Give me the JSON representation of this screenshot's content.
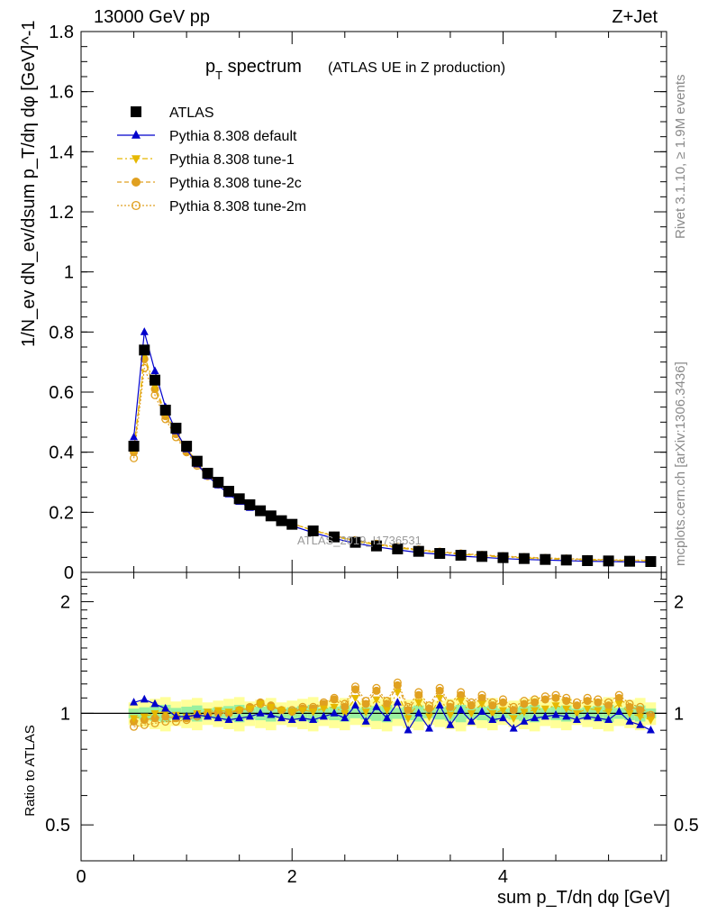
{
  "header": {
    "left": "13000 GeV pp",
    "right": "Z+Jet"
  },
  "side": {
    "rivet": "Rivet 3.1.10, ≥ 1.9M events",
    "mcplots": "mcplots.cern.ch [arXiv:1306.3436]"
  },
  "title": {
    "main": "p",
    "sub": "T",
    "rest": " spectrum",
    "paren": "(ATLAS UE in Z production)"
  },
  "watermark": "ATLAS_2019_I1736531",
  "axes": {
    "ylabel": "1/N_ev dN_ev/dsum p_T/dη dφ [GeV]^-1",
    "ratio_ylabel": "Ratio to ATLAS",
    "xlabel": "sum p_T/dη dφ [GeV]"
  },
  "legend": {
    "items": [
      {
        "label": "ATLAS",
        "color": "#000000",
        "marker": "square-filled"
      },
      {
        "label": "Pythia 8.308 default",
        "color": "#0000cc",
        "marker": "triangle-up-filled"
      },
      {
        "label": "Pythia 8.308 tune-1",
        "color": "#e6b800",
        "marker": "triangle-down-filled"
      },
      {
        "label": "Pythia 8.308 tune-2c",
        "color": "#e0a020",
        "marker": "circle-filled"
      },
      {
        "label": "Pythia 8.308 tune-2m",
        "color": "#e0a020",
        "marker": "circle-open"
      }
    ]
  },
  "chart_data": [
    {
      "type": "scatter",
      "panel": "main",
      "xlim": [
        0,
        5.55
      ],
      "ylim": [
        0,
        1.8
      ],
      "yticks": [
        0,
        0.2,
        0.4,
        0.6,
        0.8,
        1,
        1.2,
        1.4,
        1.6,
        1.8
      ],
      "ytick_labels": [
        "0",
        "0.2",
        "0.4",
        "0.6",
        "0.8",
        "1",
        "1.2",
        "1.4",
        "1.6",
        "1.8"
      ],
      "x": [
        0.5,
        0.6,
        0.7,
        0.8,
        0.9,
        1.0,
        1.1,
        1.2,
        1.3,
        1.4,
        1.5,
        1.6,
        1.7,
        1.8,
        1.9,
        2.0,
        2.2,
        2.4,
        2.6,
        2.8,
        3.0,
        3.2,
        3.4,
        3.6,
        3.8,
        4.0,
        4.2,
        4.4,
        4.6,
        4.8,
        5.0,
        5.2,
        5.4
      ],
      "series": [
        {
          "name": "ATLAS",
          "values": [
            0.42,
            0.74,
            0.64,
            0.54,
            0.48,
            0.42,
            0.37,
            0.33,
            0.3,
            0.27,
            0.245,
            0.225,
            0.205,
            0.188,
            0.172,
            0.16,
            0.138,
            0.118,
            0.1,
            0.088,
            0.078,
            0.07,
            0.063,
            0.057,
            0.053,
            0.049,
            0.046,
            0.043,
            0.041,
            0.039,
            0.038,
            0.037,
            0.036
          ]
        },
        {
          "name": "Pythia 8.308 default",
          "values": [
            0.45,
            0.8,
            0.67,
            0.55,
            0.47,
            0.41,
            0.36,
            0.32,
            0.29,
            0.26,
            0.235,
            0.215,
            0.2,
            0.183,
            0.168,
            0.155,
            0.132,
            0.113,
            0.097,
            0.085,
            0.075,
            0.066,
            0.06,
            0.054,
            0.05,
            0.046,
            0.043,
            0.041,
            0.039,
            0.037,
            0.036,
            0.035,
            0.034
          ]
        },
        {
          "name": "Pythia 8.308 tune-1",
          "values": [
            0.41,
            0.72,
            0.62,
            0.53,
            0.47,
            0.41,
            0.37,
            0.33,
            0.3,
            0.27,
            0.247,
            0.228,
            0.21,
            0.192,
            0.176,
            0.162,
            0.14,
            0.12,
            0.104,
            0.092,
            0.082,
            0.073,
            0.066,
            0.06,
            0.055,
            0.051,
            0.048,
            0.045,
            0.043,
            0.041,
            0.04,
            0.039,
            0.038
          ]
        },
        {
          "name": "Pythia 8.308 tune-2c",
          "values": [
            0.4,
            0.71,
            0.61,
            0.52,
            0.46,
            0.4,
            0.36,
            0.325,
            0.295,
            0.268,
            0.245,
            0.226,
            0.208,
            0.19,
            0.175,
            0.162,
            0.14,
            0.121,
            0.106,
            0.094,
            0.084,
            0.075,
            0.068,
            0.062,
            0.057,
            0.053,
            0.05,
            0.047,
            0.045,
            0.043,
            0.041,
            0.04,
            0.039
          ]
        },
        {
          "name": "Pythia 8.308 tune-2m",
          "values": [
            0.38,
            0.68,
            0.59,
            0.51,
            0.45,
            0.4,
            0.355,
            0.32,
            0.292,
            0.266,
            0.244,
            0.225,
            0.207,
            0.19,
            0.175,
            0.162,
            0.141,
            0.122,
            0.107,
            0.095,
            0.085,
            0.076,
            0.069,
            0.063,
            0.058,
            0.054,
            0.051,
            0.048,
            0.046,
            0.044,
            0.042,
            0.041,
            0.04
          ]
        }
      ]
    },
    {
      "type": "scatter",
      "panel": "ratio",
      "ylabel": "Ratio to ATLAS",
      "xlim": [
        0,
        5.55
      ],
      "ylim": [
        0.4,
        2.4
      ],
      "y_scale": "log",
      "yticks": [
        0.5,
        1,
        2
      ],
      "ytick_labels": [
        "0.5",
        "1",
        "2"
      ],
      "xticks": [
        0,
        2,
        4
      ],
      "xtick_labels": [
        "0",
        "2",
        "4"
      ],
      "x": [
        0.5,
        0.6,
        0.7,
        0.8,
        0.9,
        1.0,
        1.1,
        1.2,
        1.3,
        1.4,
        1.5,
        1.6,
        1.7,
        1.8,
        1.9,
        2.0,
        2.1,
        2.2,
        2.3,
        2.4,
        2.5,
        2.6,
        2.7,
        2.8,
        2.9,
        3.0,
        3.1,
        3.2,
        3.3,
        3.4,
        3.5,
        3.6,
        3.7,
        3.8,
        3.9,
        4.0,
        4.1,
        4.2,
        4.3,
        4.4,
        4.5,
        4.6,
        4.7,
        4.8,
        4.9,
        5.0,
        5.1,
        5.2,
        5.3,
        5.4
      ],
      "band_inner": 0.03,
      "band_outer": 0.07,
      "series": [
        {
          "name": "Pythia 8.308 default",
          "values": [
            1.07,
            1.09,
            1.06,
            1.03,
            0.98,
            0.98,
            0.99,
            0.98,
            0.97,
            0.96,
            0.97,
            0.98,
            1.0,
            0.99,
            0.97,
            0.96,
            0.97,
            0.96,
            0.98,
            1.0,
            0.97,
            1.05,
            0.95,
            1.04,
            0.97,
            1.07,
            0.9,
            1.0,
            0.91,
            1.05,
            0.93,
            1.02,
            0.95,
            1.01,
            0.96,
            0.97,
            0.91,
            0.95,
            0.97,
            0.98,
            0.99,
            0.98,
            0.96,
            0.98,
            0.97,
            0.96,
            1.01,
            0.95,
            0.93,
            0.9
          ]
        },
        {
          "name": "Pythia 8.308 tune-1",
          "values": [
            0.97,
            0.98,
            1.0,
            1.01,
            0.99,
            0.98,
            1.0,
            1.01,
            1.02,
            1.01,
            1.02,
            1.03,
            1.06,
            1.04,
            1.02,
            1.01,
            1.02,
            1.01,
            1.03,
            1.04,
            1.0,
            1.1,
            1.01,
            1.09,
            1.02,
            1.14,
            0.97,
            1.07,
            0.98,
            1.1,
            0.99,
            1.08,
            1.0,
            1.06,
            1.0,
            1.02,
            0.97,
            1.01,
            1.02,
            1.03,
            1.05,
            1.03,
            1.0,
            1.03,
            1.02,
            1.01,
            1.06,
            1.0,
            0.98,
            0.96
          ]
        },
        {
          "name": "Pythia 8.308 tune-2c",
          "values": [
            0.95,
            0.96,
            0.97,
            0.98,
            0.97,
            0.97,
            0.99,
            1.0,
            1.01,
            1.0,
            1.02,
            1.04,
            1.07,
            1.05,
            1.02,
            1.01,
            1.03,
            1.03,
            1.06,
            1.09,
            1.04,
            1.16,
            1.06,
            1.15,
            1.06,
            1.19,
            1.02,
            1.12,
            1.03,
            1.15,
            1.04,
            1.12,
            1.05,
            1.1,
            1.05,
            1.07,
            1.02,
            1.06,
            1.07,
            1.09,
            1.1,
            1.08,
            1.05,
            1.08,
            1.07,
            1.05,
            1.1,
            1.04,
            1.02,
            0.98
          ]
        },
        {
          "name": "Pythia 8.308 tune-2m",
          "values": [
            0.92,
            0.93,
            0.94,
            0.95,
            0.95,
            0.96,
            0.98,
            0.99,
            1.0,
            1.0,
            1.02,
            1.03,
            1.06,
            1.04,
            1.02,
            1.02,
            1.04,
            1.04,
            1.07,
            1.1,
            1.06,
            1.18,
            1.08,
            1.17,
            1.08,
            1.21,
            1.04,
            1.14,
            1.05,
            1.17,
            1.06,
            1.14,
            1.07,
            1.12,
            1.07,
            1.09,
            1.04,
            1.08,
            1.09,
            1.11,
            1.12,
            1.1,
            1.07,
            1.1,
            1.09,
            1.07,
            1.12,
            1.06,
            1.04,
            0.99
          ]
        }
      ]
    }
  ]
}
